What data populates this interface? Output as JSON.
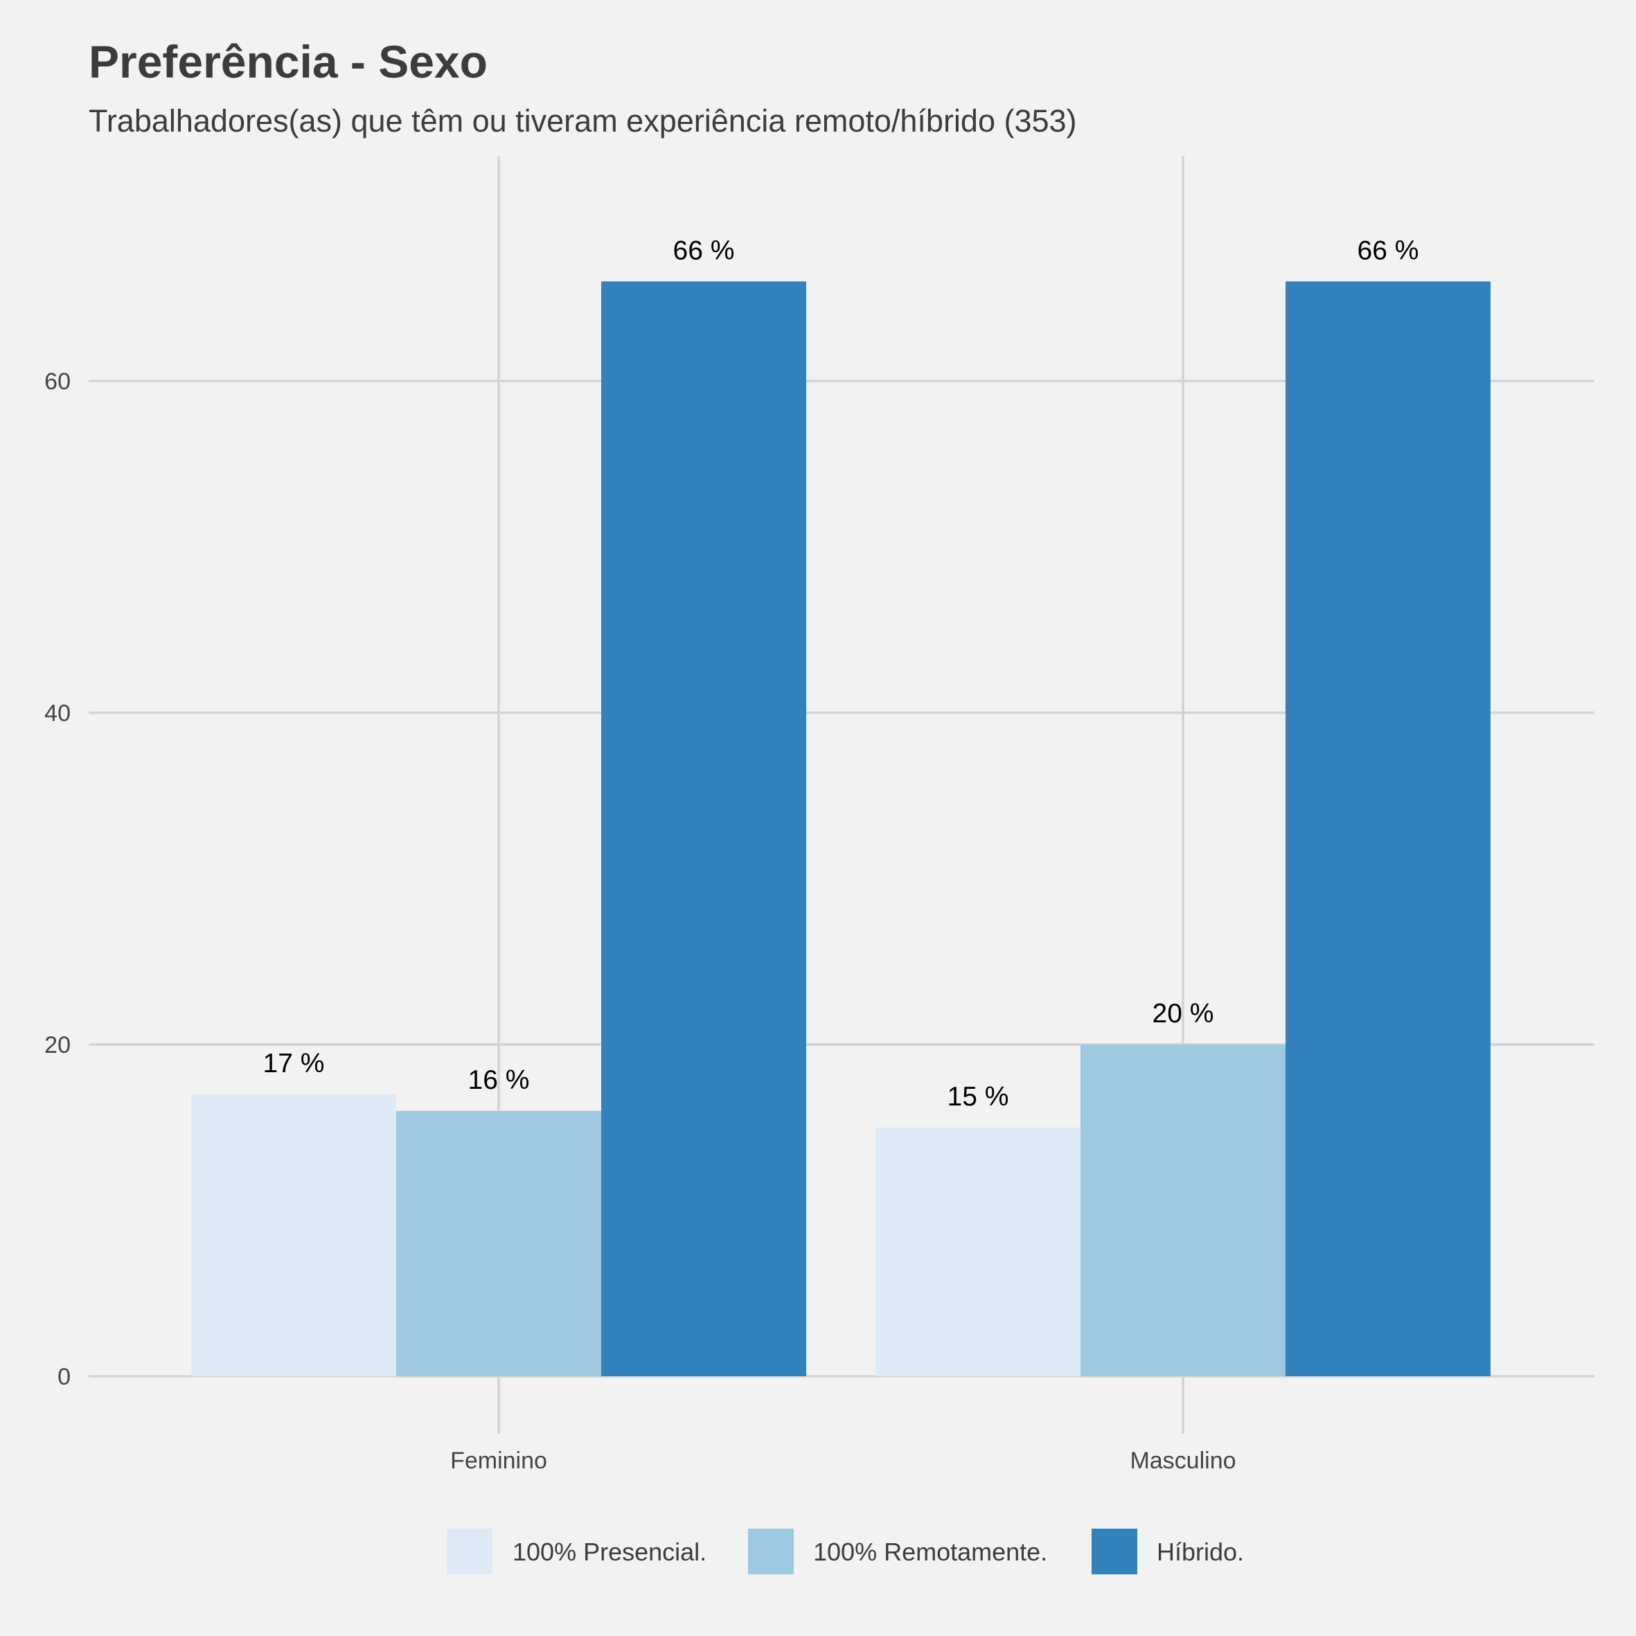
{
  "chart_data": {
    "type": "bar",
    "title": "Preferência - Sexo",
    "subtitle": "Trabalhadores(as) que têm ou tiveram experiência remoto/híbrido (353)",
    "xlabel": "",
    "ylabel": "",
    "categories": [
      "Feminino",
      "Masculino"
    ],
    "series": [
      {
        "name": "100% Presencial.",
        "values": [
          17,
          15
        ],
        "labels": [
          "17 %",
          "15 %"
        ],
        "color": "#deebf7"
      },
      {
        "name": "100% Remotamente.",
        "values": [
          16,
          20
        ],
        "labels": [
          "16 %",
          "20 %"
        ],
        "color": "#9ecae1"
      },
      {
        "name": "Híbrido.",
        "values": [
          66,
          66
        ],
        "labels": [
          "66 %",
          "66 %"
        ],
        "color": "#3182bd"
      }
    ],
    "yticks": [
      0,
      20,
      40,
      60
    ],
    "ylim": [
      0,
      73.5
    ],
    "grid": true,
    "legend_position": "bottom"
  },
  "colors": {
    "background": "#f2f2f2",
    "grid": "#d3d3d3",
    "text": "#3c3c3c"
  }
}
